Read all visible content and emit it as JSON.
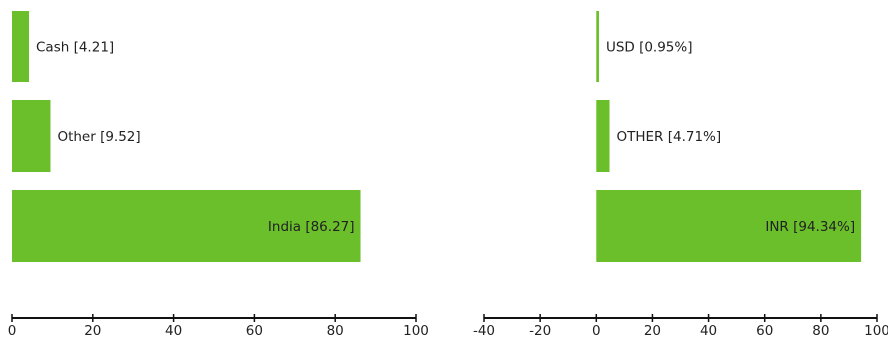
{
  "chart_data": [
    {
      "type": "bar",
      "orientation": "horizontal",
      "categories": [
        "Cash",
        "Other",
        "India"
      ],
      "labels": [
        "Cash [4.21]",
        "Other [9.52]",
        "India [86.27]"
      ],
      "values": [
        4.21,
        9.52,
        86.27
      ],
      "xlim": [
        0,
        100
      ],
      "xticks": [
        "0",
        "20",
        "40",
        "60",
        "80",
        "100"
      ],
      "grid": false,
      "color": "#6abf2a"
    },
    {
      "type": "bar",
      "orientation": "horizontal",
      "categories": [
        "USD",
        "OTHER",
        "INR"
      ],
      "labels": [
        "USD [0.95%]",
        "OTHER [4.71%]",
        "INR [94.34%]"
      ],
      "values": [
        0.95,
        4.71,
        94.34
      ],
      "xlim": [
        -40,
        100
      ],
      "xticks": [
        "-40",
        "-20",
        "0",
        "20",
        "40",
        "60",
        "80",
        "100"
      ],
      "grid": false,
      "color": "#6abf2a"
    }
  ]
}
